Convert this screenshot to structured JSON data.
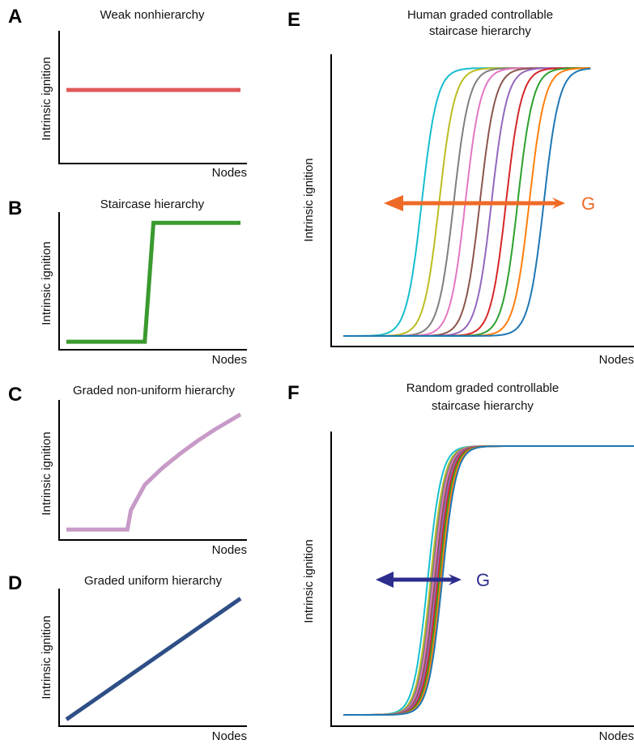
{
  "chart_data": [
    {
      "panel": "A",
      "type": "line",
      "title": "Weak nonhierarchy",
      "xlabel": "Nodes",
      "ylabel": "Intrinsic ignition",
      "color": "#e05a5a",
      "description_shape": "flat",
      "x": [
        0,
        1
      ],
      "y": [
        0.55,
        0.55
      ]
    },
    {
      "panel": "B",
      "type": "line",
      "title": "Staircase hierarchy",
      "xlabel": "Nodes",
      "ylabel": "Intrinsic ignition",
      "color": "#3a9a2e",
      "x": [
        0,
        0.45,
        0.5,
        1
      ],
      "y": [
        0.05,
        0.05,
        0.98,
        0.98
      ]
    },
    {
      "panel": "C",
      "type": "line",
      "title": "Graded non-uniform hierarchy",
      "xlabel": "Nodes",
      "ylabel": "Intrinsic ignition",
      "color": "#c79ac7",
      "x": [
        0,
        0.35,
        0.37,
        0.45,
        0.55,
        0.65,
        0.75,
        0.85,
        1
      ],
      "y": [
        0.05,
        0.05,
        0.2,
        0.4,
        0.53,
        0.64,
        0.74,
        0.83,
        0.95
      ]
    },
    {
      "panel": "D",
      "type": "line",
      "title": "Graded uniform hierarchy",
      "xlabel": "Nodes",
      "ylabel": "Intrinsic ignition",
      "color": "#2e4e86",
      "x": [
        0,
        1
      ],
      "y": [
        0.05,
        0.95
      ]
    },
    {
      "panel": "E",
      "type": "line",
      "title_lines": [
        "Human graded controllable",
        "staircase hierarchy"
      ],
      "xlabel": "Nodes",
      "ylabel": "Intrinsic ignition",
      "arrow_label": "G",
      "arrow_color": "#ef6a27",
      "curve_shape": "sigmoid",
      "series": [
        {
          "color": "#17becf",
          "midpoint": 0.27
        },
        {
          "color": "#bcbd22",
          "midpoint": 0.33
        },
        {
          "color": "#7f7f7f",
          "midpoint": 0.38
        },
        {
          "color": "#e377c2",
          "midpoint": 0.42
        },
        {
          "color": "#8c564b",
          "midpoint": 0.47
        },
        {
          "color": "#9467bd",
          "midpoint": 0.51
        },
        {
          "color": "#d62728",
          "midpoint": 0.56
        },
        {
          "color": "#2ca02c",
          "midpoint": 0.6
        },
        {
          "color": "#ff7f0e",
          "midpoint": 0.64
        },
        {
          "color": "#1f77b4",
          "midpoint": 0.69
        }
      ],
      "ylim": [
        0,
        1
      ]
    },
    {
      "panel": "F",
      "type": "line",
      "title_lines": [
        "Random graded controllable",
        "staircase hierarchy"
      ],
      "xlabel": "Nodes",
      "ylabel": "Intrinsic ignition",
      "arrow_label": "G",
      "arrow_color": "#2d2d8e",
      "curve_shape": "sigmoid",
      "series": [
        {
          "color": "#17becf",
          "midpoint": 0.29
        },
        {
          "color": "#bcbd22",
          "midpoint": 0.3
        },
        {
          "color": "#7f7f7f",
          "midpoint": 0.305
        },
        {
          "color": "#e377c2",
          "midpoint": 0.31
        },
        {
          "color": "#8c564b",
          "midpoint": 0.315
        },
        {
          "color": "#9467bd",
          "midpoint": 0.32
        },
        {
          "color": "#d62728",
          "midpoint": 0.325
        },
        {
          "color": "#2ca02c",
          "midpoint": 0.33
        },
        {
          "color": "#ff7f0e",
          "midpoint": 0.335
        },
        {
          "color": "#1f77b4",
          "midpoint": 0.34
        }
      ],
      "ylim": [
        0,
        1
      ]
    }
  ],
  "panel_letters": {
    "A": "A",
    "B": "B",
    "C": "C",
    "D": "D",
    "E": "E",
    "F": "F"
  }
}
